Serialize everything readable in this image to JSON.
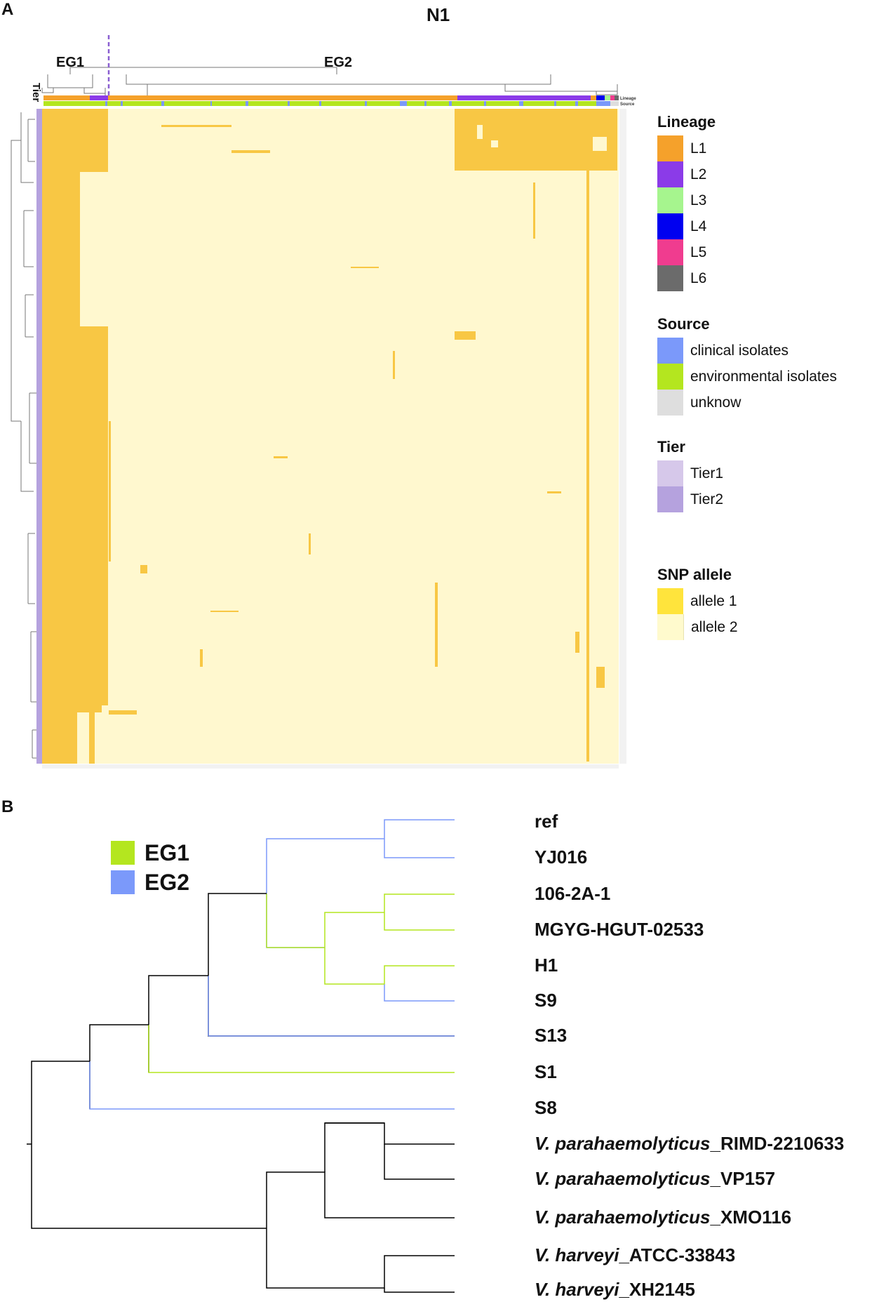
{
  "panel_a": {
    "letter": "A",
    "title": "N1",
    "cluster_labels": [
      "EG1",
      "EG2"
    ],
    "tier_axis_label": "Tier",
    "top_bar_labels": [
      "Lineage",
      "Source"
    ],
    "legends": [
      {
        "title": "Lineage",
        "items": [
          {
            "label": "L1",
            "color": "#F5A12B"
          },
          {
            "label": "L2",
            "color": "#8B3BE8"
          },
          {
            "label": "L3",
            "color": "#A6F58E"
          },
          {
            "label": "L4",
            "color": "#0000F0"
          },
          {
            "label": "L5",
            "color": "#F03C8F"
          },
          {
            "label": "L6",
            "color": "#6B6B6B"
          }
        ]
      },
      {
        "title": "Source",
        "items": [
          {
            "label": "clinical isolates",
            "color": "#7B99FA"
          },
          {
            "label": "environmental isolates",
            "color": "#B4E61F"
          },
          {
            "label": "unknow",
            "color": "#DEDEDE"
          }
        ]
      },
      {
        "title": "Tier",
        "items": [
          {
            "label": "Tier1",
            "color": "#D6C8EA"
          },
          {
            "label": "Tier2",
            "color": "#B5A2DE"
          }
        ]
      },
      {
        "title": "SNP allele",
        "items": [
          {
            "label": "allele 1",
            "color": "#FFE43C"
          },
          {
            "label": "allele 2",
            "color": "#FFFACD"
          }
        ]
      }
    ],
    "heatmap_colors": {
      "allele1": "#F8C744",
      "allele2": "#FFF8CF",
      "tier_bar": "#B5A2DE",
      "divider": "#8A5FD1"
    }
  },
  "panel_b": {
    "letter": "B",
    "legend": [
      {
        "label": "EG1",
        "color": "#B4E61F"
      },
      {
        "label": "EG2",
        "color": "#7B99FA"
      }
    ],
    "tips": [
      {
        "species": "",
        "name": "ref",
        "group": "EG2"
      },
      {
        "species": "",
        "name": "YJ016",
        "group": "EG2"
      },
      {
        "species": "",
        "name": "106-2A-1",
        "group": "EG1"
      },
      {
        "species": "",
        "name": "MGYG-HGUT-02533",
        "group": "EG1"
      },
      {
        "species": "",
        "name": "H1",
        "group": "EG1"
      },
      {
        "species": "",
        "name": "S9",
        "group": "EG2"
      },
      {
        "species": "",
        "name": "S13",
        "group": "EG2"
      },
      {
        "species": "",
        "name": "S1",
        "group": "EG1"
      },
      {
        "species": "",
        "name": "S8",
        "group": "EG2"
      },
      {
        "species": "V. parahaemolyticus",
        "name": "_RIMD-2210633",
        "group": "outgroup"
      },
      {
        "species": "V. parahaemolyticus",
        "name": "_VP157",
        "group": "outgroup"
      },
      {
        "species": "V. parahaemolyticus",
        "name": "_XMO116",
        "group": "outgroup"
      },
      {
        "species": "V. harveyi",
        "name": "_ATCC-33843",
        "group": "outgroup"
      },
      {
        "species": "V. harveyi",
        "name": "_XH2145",
        "group": "outgroup"
      }
    ]
  }
}
